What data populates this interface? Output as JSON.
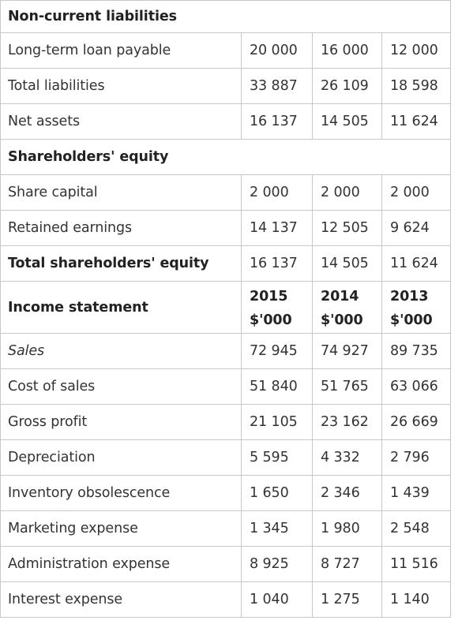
{
  "sections": {
    "non_current_liabilities": "Non-current liabilities",
    "shareholders_equity": "Shareholders' equity"
  },
  "balance_rows": [
    {
      "label": "Long-term loan payable",
      "values": [
        "20 000",
        "16 000",
        "12 000"
      ]
    },
    {
      "label": "Total liabilities",
      "values": [
        "33 887",
        "26 109",
        "18 598"
      ]
    },
    {
      "label": "Net assets",
      "values": [
        "16 137",
        "14 505",
        "11 624"
      ]
    }
  ],
  "equity_rows": [
    {
      "label": "Share capital",
      "values": [
        "2 000",
        "2 000",
        "2 000"
      ]
    },
    {
      "label": "Retained earnings",
      "values": [
        "14 137",
        "12 505",
        "9 624"
      ]
    },
    {
      "label": "Total shareholders' equity",
      "values": [
        "16 137",
        "14 505",
        "11 624"
      ]
    }
  ],
  "income_statement": {
    "title": "Income statement",
    "columns": [
      {
        "year": "2015",
        "unit": "$'000"
      },
      {
        "year": "2014",
        "unit": "$'000"
      },
      {
        "year": "2013",
        "unit": "$'000"
      }
    ],
    "rows": [
      {
        "label": "Sales",
        "values": [
          "72 945",
          "74 927",
          "89 735"
        ]
      },
      {
        "label": "Cost of sales",
        "values": [
          "51 840",
          "51 765",
          "63 066"
        ]
      },
      {
        "label": "Gross profit",
        "values": [
          "21 105",
          "23 162",
          "26 669"
        ]
      },
      {
        "label": "Depreciation",
        "values": [
          "5 595",
          "4 332",
          "2 796"
        ]
      },
      {
        "label": "Inventory obsolescence",
        "values": [
          "1 650",
          "2 346",
          "1 439"
        ]
      },
      {
        "label": "Marketing expense",
        "values": [
          "1 345",
          "1 980",
          "2 548"
        ]
      },
      {
        "label": "Administration expense",
        "values": [
          "8 925",
          "8 727",
          "11 516"
        ]
      },
      {
        "label": "Interest expense",
        "values": [
          "1 040",
          "1 275",
          "1 140"
        ]
      }
    ]
  }
}
